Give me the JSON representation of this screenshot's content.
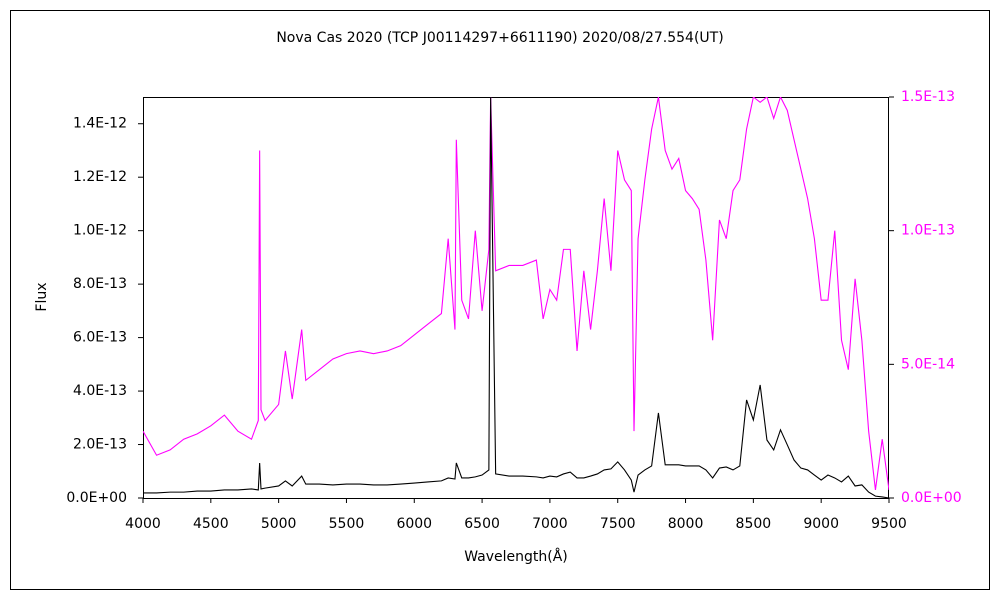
{
  "chart_data": {
    "type": "line",
    "title": "Nova Cas 2020 (TCP J00114297+6611190)    2020/08/27.554(UT)",
    "xlabel": "Wavelength(Å)",
    "ylabel": "Flux",
    "xlim": [
      4000,
      9500
    ],
    "xticks": [
      4000,
      4500,
      5000,
      5500,
      6000,
      6500,
      7000,
      7500,
      8000,
      8500,
      9000,
      9500
    ],
    "ylim": [
      0,
      1.5e-12
    ],
    "yticks": [
      {
        "value": 0,
        "label": "0.0E+00"
      },
      {
        "value": 2e-13,
        "label": "2.0E-13"
      },
      {
        "value": 4e-13,
        "label": "4.0E-13"
      },
      {
        "value": 6e-13,
        "label": "6.0E-13"
      },
      {
        "value": 8e-13,
        "label": "8.0E-13"
      },
      {
        "value": 1e-12,
        "label": "1.0E-12"
      },
      {
        "value": 1.2e-12,
        "label": "1.2E-12"
      },
      {
        "value": 1.4e-12,
        "label": "1.4E-12"
      }
    ],
    "y2lim": [
      0,
      1.5e-13
    ],
    "y2ticks": [
      {
        "value": 0,
        "label": "0.0E+00"
      },
      {
        "value": 5e-14,
        "label": "5.0E-14"
      },
      {
        "value": 1e-13,
        "label": "1.0E-13"
      },
      {
        "value": 1.5e-13,
        "label": "1.5E-13"
      }
    ],
    "y2color": "#ff00ff",
    "x": [
      4000,
      4100,
      4200,
      4300,
      4400,
      4500,
      4600,
      4700,
      4800,
      4850,
      4860,
      4870,
      4900,
      5000,
      5050,
      5100,
      5170,
      5200,
      5300,
      5400,
      5500,
      5600,
      5700,
      5800,
      5900,
      6000,
      6100,
      6200,
      6250,
      6300,
      6310,
      6350,
      6400,
      6450,
      6500,
      6550,
      6563,
      6600,
      6700,
      6800,
      6900,
      6950,
      7000,
      7050,
      7100,
      7150,
      7200,
      7250,
      7300,
      7350,
      7400,
      7450,
      7500,
      7550,
      7600,
      7620,
      7650,
      7700,
      7750,
      7800,
      7850,
      7900,
      7950,
      8000,
      8050,
      8100,
      8150,
      8200,
      8250,
      8300,
      8350,
      8400,
      8450,
      8500,
      8550,
      8600,
      8650,
      8700,
      8750,
      8800,
      8850,
      8900,
      8950,
      9000,
      9050,
      9100,
      9150,
      9200,
      9250,
      9300,
      9350,
      9400,
      9450,
      9500
    ],
    "series": [
      {
        "color": "#ff00ff",
        "axis": "y2",
        "values": [
          2.5e-14,
          1.6e-14,
          1.8e-14,
          2.2e-14,
          2.4e-14,
          2.7e-14,
          3.1e-14,
          2.5e-14,
          2.2e-14,
          2.9e-14,
          1.3e-13,
          3.3e-14,
          2.9e-14,
          3.5e-14,
          5.5e-14,
          3.7e-14,
          6.3e-14,
          4.4e-14,
          4.8e-14,
          5.2e-14,
          5.4e-14,
          5.5e-14,
          5.4e-14,
          5.5e-14,
          5.7e-14,
          6.1e-14,
          6.5e-14,
          6.9e-14,
          9.7e-14,
          6.3e-14,
          1.34e-13,
          7.4e-14,
          6.7e-14,
          1e-13,
          7e-14,
          9.3e-14,
          1.5e-13,
          8.5e-14,
          8.7e-14,
          8.7e-14,
          8.9e-14,
          6.7e-14,
          7.8e-14,
          7.4e-14,
          9.3e-14,
          9.3e-14,
          5.5e-14,
          8.5e-14,
          6.3e-14,
          8.5e-14,
          1.12e-13,
          8.5e-14,
          1.3e-13,
          1.19e-13,
          1.15e-13,
          2.5e-14,
          9.7e-14,
          1.19e-13,
          1.38e-13,
          1.5e-13,
          1.3e-13,
          1.23e-13,
          1.27e-13,
          1.15e-13,
          1.12e-13,
          1.08e-13,
          8.9e-14,
          5.9e-14,
          1.04e-13,
          9.7e-14,
          1.15e-13,
          1.19e-13,
          1.38e-13,
          1.5e-13,
          1.48e-13,
          1.5e-13,
          1.42e-13,
          1.5e-13,
          1.45e-13,
          1.34e-13,
          1.23e-13,
          1.12e-13,
          9.7e-14,
          7.4e-14,
          7.4e-14,
          1e-13,
          5.9e-14,
          4.8e-14,
          8.2e-14,
          5.9e-14,
          2.5e-14,
          3e-15,
          2.2e-14,
          3e-15
        ]
      },
      {
        "color": "#000000",
        "axis": "y",
        "values": [
          1.9e-14,
          1.9e-14,
          2.2e-14,
          2.2e-14,
          2.6e-14,
          2.6e-14,
          3e-14,
          3e-14,
          3.4e-14,
          3e-14,
          1.31e-13,
          3.4e-14,
          3.7e-14,
          4.5e-14,
          6.4e-14,
          4.5e-14,
          8.2e-14,
          5.2e-14,
          5.2e-14,
          4.9e-14,
          5.2e-14,
          5.2e-14,
          4.9e-14,
          4.9e-14,
          5.2e-14,
          5.6e-14,
          6e-14,
          6.4e-14,
          7.5e-14,
          7.1e-14,
          1.31e-13,
          7.5e-14,
          7.5e-14,
          7.9e-14,
          8.6e-14,
          1.05e-13,
          1.5e-12,
          9e-14,
          8.2e-14,
          8.2e-14,
          7.9e-14,
          7.5e-14,
          8.2e-14,
          7.9e-14,
          9e-14,
          9.7e-14,
          7.5e-14,
          7.5e-14,
          8.2e-14,
          9e-14,
          1.05e-13,
          1.09e-13,
          1.35e-13,
          1.05e-13,
          6.7e-14,
          2.2e-14,
          8.6e-14,
          1.05e-13,
          1.2e-13,
          3.18e-13,
          1.24e-13,
          1.24e-13,
          1.24e-13,
          1.2e-13,
          1.2e-13,
          1.2e-13,
          1.05e-13,
          7.5e-14,
          1.12e-13,
          1.16e-13,
          1.05e-13,
          1.2e-13,
          3.67e-13,
          2.92e-13,
          4.23e-13,
          2.17e-13,
          1.8e-13,
          2.55e-13,
          1.99e-13,
          1.42e-13,
          1.12e-13,
          1.05e-13,
          8.6e-14,
          6.7e-14,
          8.6e-14,
          7.5e-14,
          6e-14,
          8.2e-14,
          4.5e-14,
          4.9e-14,
          2.2e-14,
          7e-15,
          4e-15,
          0
        ]
      }
    ]
  }
}
